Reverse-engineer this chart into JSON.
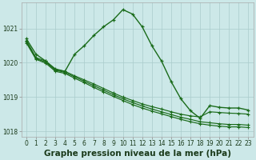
{
  "bg_color": "#cce8e8",
  "grid_color": "#aacccc",
  "line_color": "#1a6b1a",
  "xlabel": "Graphe pression niveau de la mer (hPa)",
  "xlabel_fontsize": 7.5,
  "tick_fontsize": 5.5,
  "xlim": [
    -0.5,
    23.5
  ],
  "ylim": [
    1017.85,
    1021.75
  ],
  "yticks": [
    1018,
    1019,
    1020,
    1021
  ],
  "xticks": [
    0,
    1,
    2,
    3,
    4,
    5,
    6,
    7,
    8,
    9,
    10,
    11,
    12,
    13,
    14,
    15,
    16,
    17,
    18,
    19,
    20,
    21,
    22,
    23
  ],
  "curve_x": [
    0,
    1,
    2,
    3,
    4,
    5,
    6,
    7,
    8,
    9,
    10,
    11,
    12,
    13,
    14,
    15,
    16,
    17,
    18,
    19,
    20,
    21,
    22,
    23
  ],
  "curve_y": [
    1020.7,
    1020.25,
    1020.05,
    1019.82,
    1019.75,
    1020.25,
    1020.5,
    1020.8,
    1021.05,
    1021.25,
    1021.55,
    1021.42,
    1021.05,
    1020.5,
    1020.05,
    1019.45,
    1018.95,
    1018.6,
    1018.38,
    1018.75,
    1018.7,
    1018.68,
    1018.68,
    1018.62
  ],
  "line1_x": [
    0,
    1,
    2,
    3,
    4,
    5,
    6,
    7,
    8,
    9,
    10,
    11,
    12,
    13,
    14,
    15,
    16,
    17,
    18,
    19,
    20,
    21,
    22,
    23
  ],
  "line1_y": [
    1020.65,
    1020.15,
    1020.05,
    1019.8,
    1019.75,
    1019.62,
    1019.5,
    1019.38,
    1019.25,
    1019.12,
    1019.0,
    1018.9,
    1018.8,
    1018.72,
    1018.65,
    1018.57,
    1018.5,
    1018.45,
    1018.42,
    1018.57,
    1018.55,
    1018.53,
    1018.52,
    1018.5
  ],
  "line2_x": [
    0,
    1,
    2,
    3,
    4,
    5,
    6,
    7,
    8,
    9,
    10,
    11,
    12,
    13,
    14,
    15,
    16,
    17,
    18,
    19,
    20,
    21,
    22,
    23
  ],
  "line2_y": [
    1020.62,
    1020.12,
    1020.02,
    1019.78,
    1019.72,
    1019.59,
    1019.46,
    1019.33,
    1019.2,
    1019.07,
    1018.95,
    1018.84,
    1018.74,
    1018.65,
    1018.57,
    1018.49,
    1018.41,
    1018.35,
    1018.28,
    1018.25,
    1018.22,
    1018.2,
    1018.2,
    1018.18
  ],
  "line3_x": [
    0,
    1,
    2,
    3,
    4,
    5,
    6,
    7,
    8,
    9,
    10,
    11,
    12,
    13,
    14,
    15,
    16,
    17,
    18,
    19,
    20,
    21,
    22,
    23
  ],
  "line3_y": [
    1020.58,
    1020.1,
    1019.99,
    1019.75,
    1019.69,
    1019.55,
    1019.42,
    1019.28,
    1019.15,
    1019.02,
    1018.9,
    1018.78,
    1018.68,
    1018.59,
    1018.51,
    1018.43,
    1018.35,
    1018.28,
    1018.22,
    1018.18,
    1018.15,
    1018.13,
    1018.13,
    1018.11
  ]
}
